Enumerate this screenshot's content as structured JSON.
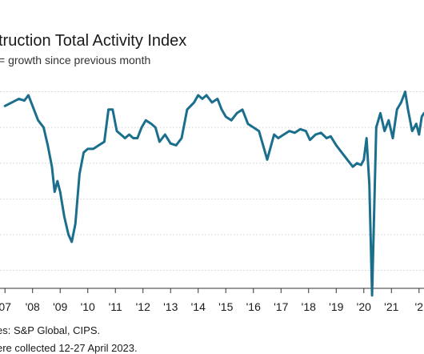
{
  "chart_data": {
    "type": "line",
    "title": "truction Total Activity Index",
    "subtitle": "= growth since previous month",
    "x_tick_labels": [
      "07",
      "'08",
      "'09",
      "'10",
      "'11",
      "'12",
      "'13",
      "'14",
      "'15",
      "'16",
      "'17",
      "'18",
      "'19",
      "'20",
      "'21",
      "'2"
    ],
    "series": [
      {
        "color": "#1b6f8c",
        "values": [
          [
            2007.0,
            61
          ],
          [
            2007.25,
            62
          ],
          [
            2007.5,
            63
          ],
          [
            2007.7,
            62.5
          ],
          [
            2007.85,
            64
          ],
          [
            2008.0,
            61
          ],
          [
            2008.2,
            57
          ],
          [
            2008.4,
            55
          ],
          [
            2008.55,
            50
          ],
          [
            2008.7,
            44
          ],
          [
            2008.8,
            37
          ],
          [
            2008.9,
            40
          ],
          [
            2009.0,
            37
          ],
          [
            2009.15,
            30
          ],
          [
            2009.3,
            25
          ],
          [
            2009.42,
            23
          ],
          [
            2009.55,
            28
          ],
          [
            2009.7,
            42
          ],
          [
            2009.85,
            48
          ],
          [
            2010.0,
            49
          ],
          [
            2010.2,
            49
          ],
          [
            2010.4,
            50
          ],
          [
            2010.6,
            51
          ],
          [
            2010.75,
            60
          ],
          [
            2010.9,
            60
          ],
          [
            2011.05,
            54
          ],
          [
            2011.2,
            53
          ],
          [
            2011.35,
            52
          ],
          [
            2011.5,
            53
          ],
          [
            2011.65,
            52
          ],
          [
            2011.8,
            52
          ],
          [
            2011.95,
            55
          ],
          [
            2012.1,
            57
          ],
          [
            2012.3,
            56
          ],
          [
            2012.45,
            55
          ],
          [
            2012.6,
            51
          ],
          [
            2012.8,
            53
          ],
          [
            2013.0,
            50.5
          ],
          [
            2013.2,
            50
          ],
          [
            2013.4,
            52
          ],
          [
            2013.6,
            60
          ],
          [
            2013.85,
            62
          ],
          [
            2014.0,
            64
          ],
          [
            2014.15,
            63
          ],
          [
            2014.3,
            64
          ],
          [
            2014.5,
            62
          ],
          [
            2014.7,
            63
          ],
          [
            2014.85,
            60
          ],
          [
            2015.0,
            58
          ],
          [
            2015.2,
            57
          ],
          [
            2015.4,
            59
          ],
          [
            2015.6,
            60
          ],
          [
            2015.8,
            56
          ],
          [
            2016.0,
            55
          ],
          [
            2016.2,
            54
          ],
          [
            2016.5,
            46
          ],
          [
            2016.75,
            53
          ],
          [
            2016.9,
            52
          ],
          [
            2017.1,
            53
          ],
          [
            2017.3,
            54
          ],
          [
            2017.5,
            53.5
          ],
          [
            2017.7,
            54.5
          ],
          [
            2017.9,
            54
          ],
          [
            2018.05,
            51.5
          ],
          [
            2018.25,
            53
          ],
          [
            2018.45,
            53.5
          ],
          [
            2018.65,
            52
          ],
          [
            2018.8,
            52.5
          ],
          [
            2019.0,
            50
          ],
          [
            2019.2,
            48
          ],
          [
            2019.4,
            46
          ],
          [
            2019.6,
            44
          ],
          [
            2019.75,
            45
          ],
          [
            2019.9,
            44.5
          ],
          [
            2020.0,
            46
          ],
          [
            2020.1,
            52
          ],
          [
            2020.2,
            39
          ],
          [
            2020.3,
            8
          ],
          [
            2020.45,
            55
          ],
          [
            2020.6,
            59
          ],
          [
            2020.75,
            54
          ],
          [
            2020.9,
            57
          ],
          [
            2021.05,
            52
          ],
          [
            2021.2,
            60
          ],
          [
            2021.35,
            62
          ],
          [
            2021.5,
            65
          ],
          [
            2021.6,
            60
          ],
          [
            2021.75,
            54
          ],
          [
            2021.9,
            56
          ],
          [
            2022.0,
            53
          ],
          [
            2022.1,
            58
          ],
          [
            2022.18,
            59
          ]
        ]
      }
    ],
    "xlim": [
      2006.82,
      2022.18
    ],
    "ylim": [
      10,
      66
    ],
    "grid": "horizontal"
  },
  "source": "es: S&P Global, CIPS.",
  "note": "ere collected 12-27 April 2023."
}
